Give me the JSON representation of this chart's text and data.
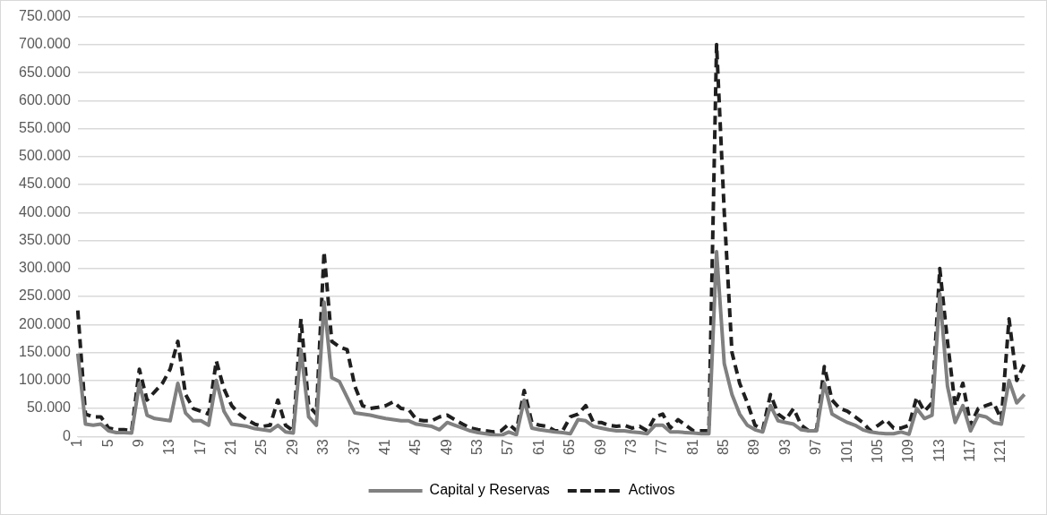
{
  "chart_data": {
    "type": "line",
    "categories": [
      "1",
      null,
      null,
      null,
      "5",
      null,
      null,
      null,
      "9",
      null,
      null,
      null,
      "13",
      null,
      null,
      null,
      "17",
      null,
      null,
      null,
      "21",
      null,
      null,
      null,
      "25",
      null,
      null,
      null,
      "29",
      null,
      null,
      null,
      "33",
      null,
      null,
      null,
      "37",
      null,
      null,
      null,
      "41",
      null,
      null,
      null,
      "45",
      null,
      null,
      null,
      "49",
      null,
      null,
      null,
      "53",
      null,
      null,
      null,
      "57",
      null,
      null,
      null,
      "61",
      null,
      null,
      null,
      "65",
      null,
      null,
      null,
      "69",
      null,
      null,
      null,
      "73",
      null,
      null,
      null,
      "77",
      null,
      null,
      null,
      "81",
      null,
      null,
      null,
      "85",
      null,
      null,
      null,
      "89",
      null,
      null,
      null,
      "93",
      null,
      null,
      null,
      "97",
      null,
      null,
      null,
      "101",
      null,
      null,
      null,
      "105",
      null,
      null,
      null,
      "109",
      null,
      null,
      null,
      "113",
      null,
      null,
      null,
      "117",
      null,
      null,
      null,
      "121",
      null,
      null,
      null
    ],
    "series": [
      {
        "name": "Capital y Reservas",
        "color": "#808080",
        "line_style": "solid",
        "values": [
          148000,
          22000,
          20000,
          22000,
          10000,
          7000,
          7000,
          6000,
          95000,
          38000,
          32000,
          30000,
          28000,
          95000,
          42000,
          28000,
          28000,
          20000,
          100000,
          45000,
          22000,
          20000,
          18000,
          14000,
          12000,
          10000,
          20000,
          8000,
          6000,
          155000,
          35000,
          20000,
          240000,
          105000,
          98000,
          70000,
          42000,
          40000,
          38000,
          35000,
          32000,
          30000,
          28000,
          28000,
          22000,
          20000,
          18000,
          12000,
          25000,
          20000,
          15000,
          10000,
          7000,
          5000,
          3000,
          2000,
          8000,
          3000,
          65000,
          15000,
          12000,
          10000,
          8000,
          7000,
          5000,
          30000,
          28000,
          18000,
          15000,
          12000,
          10000,
          10000,
          8000,
          7000,
          5000,
          20000,
          20000,
          8000,
          8000,
          7000,
          6000,
          5000,
          5000,
          330000,
          130000,
          75000,
          40000,
          20000,
          12000,
          8000,
          55000,
          28000,
          25000,
          22000,
          12000,
          10000,
          10000,
          95000,
          40000,
          32000,
          25000,
          20000,
          12000,
          8000,
          6000,
          5000,
          5000,
          8000,
          4000,
          50000,
          32000,
          38000,
          255000,
          90000,
          25000,
          55000,
          10000,
          38000,
          35000,
          25000,
          22000,
          100000,
          60000,
          75000
        ]
      },
      {
        "name": "Activos",
        "color": "#1f1f1f",
        "line_style": "dashed",
        "values": [
          225000,
          40000,
          35000,
          35000,
          15000,
          12000,
          12000,
          10000,
          120000,
          65000,
          80000,
          95000,
          120000,
          170000,
          75000,
          50000,
          45000,
          40000,
          135000,
          85000,
          55000,
          40000,
          30000,
          22000,
          18000,
          20000,
          65000,
          20000,
          10000,
          210000,
          55000,
          40000,
          330000,
          170000,
          160000,
          155000,
          90000,
          55000,
          50000,
          52000,
          55000,
          62000,
          50000,
          48000,
          30000,
          28000,
          28000,
          35000,
          38000,
          30000,
          22000,
          15000,
          12000,
          10000,
          8000,
          10000,
          22000,
          10000,
          82000,
          25000,
          20000,
          18000,
          10000,
          10000,
          35000,
          40000,
          55000,
          25000,
          25000,
          20000,
          18000,
          20000,
          15000,
          18000,
          10000,
          35000,
          40000,
          15000,
          30000,
          20000,
          10000,
          10000,
          10000,
          700000,
          400000,
          150000,
          95000,
          60000,
          20000,
          12000,
          75000,
          40000,
          30000,
          50000,
          20000,
          10000,
          12000,
          125000,
          65000,
          50000,
          45000,
          35000,
          25000,
          10000,
          20000,
          30000,
          15000,
          15000,
          20000,
          70000,
          45000,
          60000,
          300000,
          170000,
          55000,
          95000,
          20000,
          50000,
          55000,
          60000,
          30000,
          210000,
          100000,
          130000
        ]
      }
    ],
    "ylim": [
      0,
      750000
    ],
    "yticks": [
      {
        "value": 0,
        "label": "0"
      },
      {
        "value": 50000,
        "label": "50.000"
      },
      {
        "value": 100000,
        "label": "100.000"
      },
      {
        "value": 150000,
        "label": "150.000"
      },
      {
        "value": 200000,
        "label": "200.000"
      },
      {
        "value": 250000,
        "label": "250.000"
      },
      {
        "value": 300000,
        "label": "300.000"
      },
      {
        "value": 350000,
        "label": "350.000"
      },
      {
        "value": 400000,
        "label": "400.000"
      },
      {
        "value": 450000,
        "label": "450.000"
      },
      {
        "value": 500000,
        "label": "500.000"
      },
      {
        "value": 550000,
        "label": "550.000"
      },
      {
        "value": 600000,
        "label": "600.000"
      },
      {
        "value": 650000,
        "label": "650.000"
      },
      {
        "value": 700000,
        "label": "700.000"
      },
      {
        "value": 750000,
        "label": "750.000"
      }
    ],
    "grid": "y",
    "legend": "bottom",
    "marker": "none"
  }
}
